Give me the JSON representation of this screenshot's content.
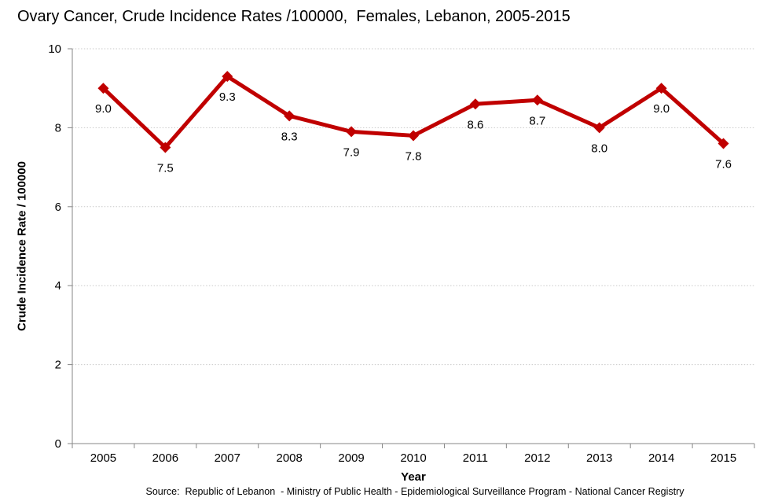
{
  "chart_data": {
    "type": "line",
    "title": "Ovary Cancer, Crude Incidence Rates /100000,  Females, Lebanon, 2005-2015",
    "xlabel": "Year",
    "ylabel": "Crude Incidence Rate / 100000",
    "source": "Source:  Republic of Lebanon  - Ministry of Public Health - Epidemiological Surveillance Program - National Cancer Registry",
    "categories": [
      "2005",
      "2006",
      "2007",
      "2008",
      "2009",
      "2010",
      "2011",
      "2012",
      "2013",
      "2014",
      "2015"
    ],
    "series": [
      {
        "name": "Crude Incidence Rate /100000",
        "values": [
          9.0,
          7.5,
          9.3,
          8.3,
          7.9,
          7.8,
          8.6,
          8.7,
          8.0,
          9.0,
          7.6
        ],
        "labels": [
          "9.0",
          "7.5",
          "9.3",
          "8.3",
          "7.9",
          "7.8",
          "8.6",
          "8.7",
          "8.0",
          "9.0",
          "7.6"
        ],
        "color": "#C00000",
        "marker": "diamond"
      }
    ],
    "ylim": [
      0,
      10
    ],
    "ytick_step": 2,
    "yticks": [
      "0",
      "2",
      "4",
      "6",
      "8",
      "10"
    ],
    "grid": "horizontal-dotted",
    "legend": "none",
    "colors": {
      "line": "#C00000",
      "marker": "#C00000",
      "axis": "#878787",
      "gridline": "#C9C9C9",
      "text": "#000000",
      "background": "#FFFFFF"
    }
  }
}
